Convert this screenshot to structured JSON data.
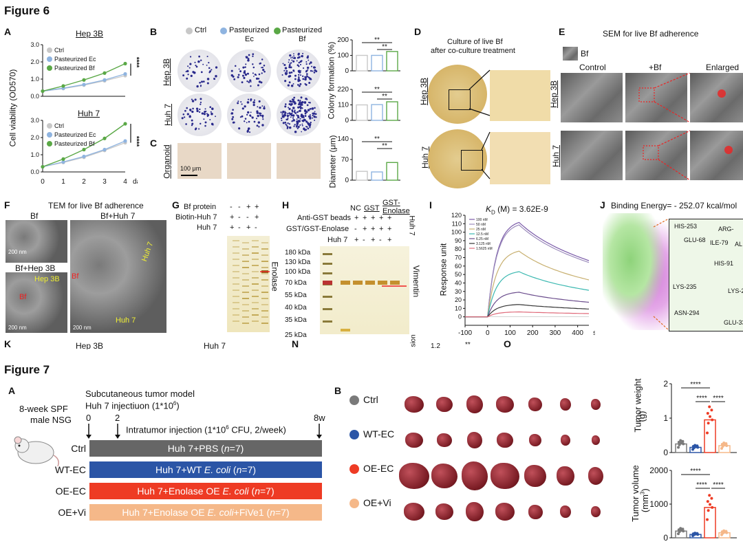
{
  "figure6": {
    "title": "Figure 6",
    "panel_letters": {
      "a": "A",
      "b": "B",
      "c": "C",
      "d": "D",
      "e": "E",
      "f": "F",
      "g": "G",
      "h": "H",
      "i": "I",
      "j": "J",
      "k": "K",
      "n": "N",
      "o": "O"
    },
    "a": {
      "ylabel": "Cell viability (OD570)",
      "xunit": "day",
      "top_title": "Hep 3B",
      "bottom_title": "Huh 7",
      "legend": [
        "Ctrl",
        "Pasteurized Ec",
        "Pasteurized Bf"
      ],
      "sig": "****"
    },
    "b": {
      "legend": [
        "Ctrl",
        "Pasteurized Ec",
        "Pasteurized Bf"
      ],
      "legend_line2": [
        "",
        "Ec",
        "Bf"
      ],
      "legend_line1": [
        "Ctrl",
        "Pasteurized",
        "Pasteurized"
      ],
      "row_labels": [
        "Hep 3B",
        "Huh 7"
      ],
      "ylabel_colony": "Colony formation (%)",
      "sig_a": "**",
      "sig_b": "**"
    },
    "c": {
      "row_label": "Organoid",
      "scale": "100 μm",
      "ylabel": "Diameter (μm)",
      "sig_a": "**",
      "sig_b": "**"
    },
    "d": {
      "title_line1": "Culture of live Bf",
      "title_line2": "after co-culture treatment",
      "row_labels": [
        "Hep 3B",
        "Huh 7"
      ]
    },
    "e": {
      "title": "SEM for live Bf adherence",
      "bf_label": "Bf",
      "cols": [
        "Control",
        "+Bf",
        "Enlarged"
      ],
      "row_labels": [
        "Hep 3B",
        "Huh 7"
      ]
    },
    "f": {
      "title": "TEM for live Bf adherence",
      "labels": [
        "Bf",
        "Bf+Huh 7",
        "Bf+Hep 3B"
      ],
      "scale1": "200 nm",
      "scale2": "200 nm",
      "scale3": "200 nm",
      "annot": [
        "Hep 3B",
        "Huh 7",
        "Huh 7",
        "Bf",
        "Bf"
      ]
    },
    "g": {
      "rows": [
        "Bf protein",
        "Biotin-Huh 7",
        "Huh 7"
      ],
      "signs": [
        [
          "-",
          "-",
          "+",
          "+"
        ],
        [
          "+",
          "-",
          "-",
          "+"
        ],
        [
          "+",
          "-",
          "+",
          "-"
        ]
      ],
      "band": "Enolase"
    },
    "h": {
      "header_nc": "NC",
      "header_gst": "GST",
      "header_gst_enolase": "GST-Enolase",
      "rows": [
        "Anti-GST beads",
        "GST/GST-Enolase",
        "Huh 7"
      ],
      "signs": [
        [
          "+",
          "+",
          "+",
          "+",
          "+"
        ],
        [
          "-",
          "+",
          "+",
          "+",
          "+"
        ],
        [
          "+",
          "-",
          "+",
          "-",
          "+"
        ]
      ],
      "huh7_side": "Huh 7",
      "markers": [
        "180 kDa",
        "130 kDa",
        "100 kDa",
        "70 kDa",
        "55 kDa",
        "40 kDa",
        "35 kDa",
        "25 kDa"
      ],
      "band": "Vimentin"
    },
    "i": {
      "title": "K_D (M) = 3.62E-9",
      "ylabel": "Response unit",
      "xunit": "s",
      "legend": [
        "100 nM",
        "50 nM",
        "25 nM",
        "12.5 nM",
        "6.25 nM",
        "3.125 nM",
        "1.5625 nM"
      ]
    },
    "j": {
      "title": "Binding Energy= - 252.07 kcal/mol",
      "residues": [
        "HIS-253",
        "ARG-",
        "GLU-68",
        "ILE-79",
        "AL",
        "HIS-91",
        "LYS-235",
        "LYS-2",
        "ASN-294",
        "GLU-33"
      ]
    },
    "k_row": {
      "labels": [
        "Hep 3B",
        "Huh 7",
        "sion",
        "1.2",
        "**"
      ]
    }
  },
  "figure7": {
    "title": "Figure 7",
    "a": {
      "mouse_line1": "8-week SPF",
      "mouse_line2": "male NSG",
      "model": "Subcutaneous tumor model",
      "injection": "Huh 7 injectiuon (1*10⁶)",
      "timepoints": [
        "0",
        "2",
        "8w"
      ],
      "intratumor": "Intratumor injection (1*10⁶ CFU, 2/week)",
      "groups": [
        {
          "name": "Ctrl",
          "bar": "Huh 7+PBS (n=7)",
          "color": "#666666"
        },
        {
          "name": "WT-EC",
          "bar": "Huh 7+WT E. coli (n=7)",
          "color": "#2b55a6"
        },
        {
          "name": "OE-EC",
          "bar": "Huh 7+Enolase OE E. coli (n=7)",
          "color": "#ee3b24"
        },
        {
          "name": "OE+Vi",
          "bar": "Huh 7+Enolase OE E. coli+FiVe1 (n=7)",
          "color": "#f5b889"
        }
      ]
    },
    "b": {
      "groups": [
        {
          "name": "Ctrl",
          "color": "#7a7a7a"
        },
        {
          "name": "WT-EC",
          "color": "#2b55a6"
        },
        {
          "name": "OE-EC",
          "color": "#ee3b24"
        },
        {
          "name": "OE+Vi",
          "color": "#f5b889"
        }
      ],
      "weight_ylabel": "Tumor weight",
      "weight_unit": "(g)",
      "volume_ylabel": "Tumor volume",
      "volume_unit": "(mm³)",
      "sig": "****"
    }
  },
  "chart_data": [
    {
      "type": "line",
      "id": "6A-hep3b",
      "title": "Hep 3B",
      "ylabel": "Cell viability (OD570)",
      "x": [
        0,
        1,
        2,
        3,
        4
      ],
      "xlabel": "day",
      "ylim": [
        0,
        3.0
      ],
      "yticks": [
        0,
        1.0,
        2.0,
        3.0
      ],
      "series": [
        {
          "name": "Ctrl",
          "color": "#c8c8c8",
          "values": [
            0.3,
            0.45,
            0.65,
            0.9,
            1.2
          ]
        },
        {
          "name": "Pasteurized Ec",
          "color": "#8fb4e0",
          "values": [
            0.3,
            0.47,
            0.68,
            0.95,
            1.3
          ]
        },
        {
          "name": "Pasteurized Bf",
          "color": "#5aa846",
          "values": [
            0.3,
            0.6,
            0.95,
            1.35,
            1.9
          ]
        }
      ]
    },
    {
      "type": "line",
      "id": "6A-huh7",
      "title": "Huh 7",
      "x": [
        0,
        1,
        2,
        3,
        4
      ],
      "xlabel": "day",
      "ylim": [
        0,
        3.0
      ],
      "yticks": [
        0,
        1.0,
        2.0,
        3.0
      ],
      "series": [
        {
          "name": "Ctrl",
          "color": "#c8c8c8",
          "values": [
            0.3,
            0.55,
            0.85,
            1.25,
            1.7
          ]
        },
        {
          "name": "Pasteurized Ec",
          "color": "#8fb4e0",
          "values": [
            0.3,
            0.58,
            0.9,
            1.3,
            1.8
          ]
        },
        {
          "name": "Pasteurized Bf",
          "color": "#5aa846",
          "values": [
            0.3,
            0.75,
            1.3,
            1.95,
            2.8
          ]
        }
      ]
    },
    {
      "type": "bar",
      "id": "6B-hep3b",
      "ylabel": "Colony formation (%)",
      "categories": [
        "Ctrl",
        "Pasteurized Ec",
        "Pasteurized Bf"
      ],
      "values": [
        100,
        100,
        125
      ],
      "ylim": [
        0,
        200
      ],
      "yticks": [
        0,
        100,
        200
      ]
    },
    {
      "type": "bar",
      "id": "6B-huh7",
      "categories": [
        "Ctrl",
        "Pasteurized Ec",
        "Pasteurized Bf"
      ],
      "values": [
        110,
        112,
        132
      ],
      "ylim": [
        0,
        220
      ],
      "yticks": [
        0,
        110,
        220
      ]
    },
    {
      "type": "bar",
      "id": "6C",
      "ylabel": "Diameter (μm)",
      "categories": [
        "Ctrl",
        "Pasteurized Ec",
        "Pasteurized Bf"
      ],
      "values": [
        30,
        28,
        60
      ],
      "ylim": [
        0,
        140
      ],
      "yticks": [
        0,
        70,
        140
      ]
    },
    {
      "type": "line",
      "id": "6I",
      "ylabel": "Response unit",
      "xlabel": "s",
      "xlim": [
        -100,
        450
      ],
      "xticks": [
        -100,
        0,
        100,
        200,
        300,
        400
      ],
      "ylim": [
        -10,
        120
      ],
      "yticks": [
        0,
        10,
        20,
        30,
        40,
        50,
        60,
        70,
        80,
        90,
        100,
        110,
        120
      ],
      "series": [
        {
          "name": "100 nM",
          "color": "#7a5aa8",
          "peak": 115,
          "end": 85
        },
        {
          "name": "50 nM",
          "color": "#9c8cbc",
          "peak": 112,
          "end": 82
        },
        {
          "name": "25 nM",
          "color": "#c8b070",
          "peak": 80,
          "end": 55
        },
        {
          "name": "12.5 nM",
          "color": "#3ab8b0",
          "peak": 55,
          "end": 40
        },
        {
          "name": "6.25 nM",
          "color": "#6a4c8c",
          "peak": 30,
          "end": 22
        },
        {
          "name": "3.125 nM",
          "color": "#333333",
          "peak": 15,
          "end": 12
        },
        {
          "name": "1.5625 nM",
          "color": "#e06a7a",
          "peak": 6,
          "end": 5
        }
      ]
    },
    {
      "type": "bar",
      "id": "7B-weight",
      "ylabel": "Tumor weight (g)",
      "categories": [
        "Ctrl",
        "WT-EC",
        "OE-EC",
        "OE+Vi"
      ],
      "values": [
        0.25,
        0.15,
        0.95,
        0.2
      ],
      "ylim": [
        0,
        2
      ],
      "yticks": [
        0,
        1,
        2
      ]
    },
    {
      "type": "bar",
      "id": "7B-volume",
      "ylabel": "Tumor volume (mm³)",
      "categories": [
        "Ctrl",
        "WT-EC",
        "OE-EC",
        "OE+Vi"
      ],
      "values": [
        200,
        100,
        900,
        150
      ],
      "ylim": [
        0,
        2000
      ],
      "yticks": [
        0,
        1000,
        2000
      ]
    }
  ]
}
